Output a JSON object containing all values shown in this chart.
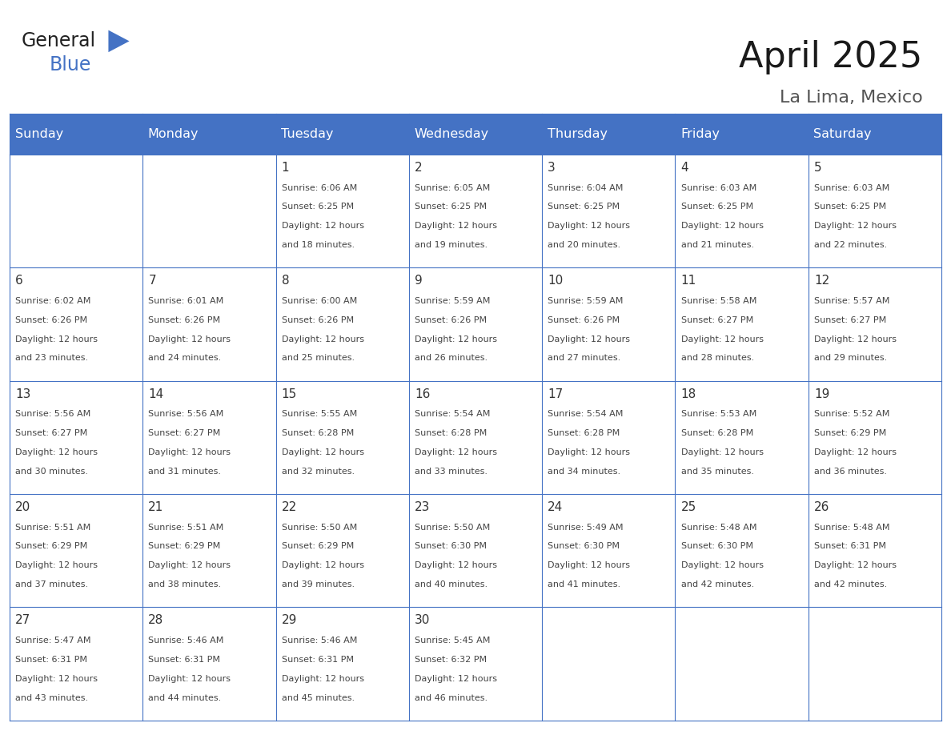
{
  "title": "April 2025",
  "subtitle": "La Lima, Mexico",
  "header_bg_color": "#4472C4",
  "header_text_color": "#FFFFFF",
  "cell_bg_color": "#FFFFFF",
  "grid_line_color": "#4472C4",
  "day_number_color": "#333333",
  "cell_text_color": "#444444",
  "days_of_week": [
    "Sunday",
    "Monday",
    "Tuesday",
    "Wednesday",
    "Thursday",
    "Friday",
    "Saturday"
  ],
  "weeks": [
    [
      {
        "day": "",
        "sunrise": "",
        "sunset": "",
        "daylight": ""
      },
      {
        "day": "",
        "sunrise": "",
        "sunset": "",
        "daylight": ""
      },
      {
        "day": "1",
        "sunrise": "6:06 AM",
        "sunset": "6:25 PM",
        "daylight": "12 hours\nand 18 minutes."
      },
      {
        "day": "2",
        "sunrise": "6:05 AM",
        "sunset": "6:25 PM",
        "daylight": "12 hours\nand 19 minutes."
      },
      {
        "day": "3",
        "sunrise": "6:04 AM",
        "sunset": "6:25 PM",
        "daylight": "12 hours\nand 20 minutes."
      },
      {
        "day": "4",
        "sunrise": "6:03 AM",
        "sunset": "6:25 PM",
        "daylight": "12 hours\nand 21 minutes."
      },
      {
        "day": "5",
        "sunrise": "6:03 AM",
        "sunset": "6:25 PM",
        "daylight": "12 hours\nand 22 minutes."
      }
    ],
    [
      {
        "day": "6",
        "sunrise": "6:02 AM",
        "sunset": "6:26 PM",
        "daylight": "12 hours\nand 23 minutes."
      },
      {
        "day": "7",
        "sunrise": "6:01 AM",
        "sunset": "6:26 PM",
        "daylight": "12 hours\nand 24 minutes."
      },
      {
        "day": "8",
        "sunrise": "6:00 AM",
        "sunset": "6:26 PM",
        "daylight": "12 hours\nand 25 minutes."
      },
      {
        "day": "9",
        "sunrise": "5:59 AM",
        "sunset": "6:26 PM",
        "daylight": "12 hours\nand 26 minutes."
      },
      {
        "day": "10",
        "sunrise": "5:59 AM",
        "sunset": "6:26 PM",
        "daylight": "12 hours\nand 27 minutes."
      },
      {
        "day": "11",
        "sunrise": "5:58 AM",
        "sunset": "6:27 PM",
        "daylight": "12 hours\nand 28 minutes."
      },
      {
        "day": "12",
        "sunrise": "5:57 AM",
        "sunset": "6:27 PM",
        "daylight": "12 hours\nand 29 minutes."
      }
    ],
    [
      {
        "day": "13",
        "sunrise": "5:56 AM",
        "sunset": "6:27 PM",
        "daylight": "12 hours\nand 30 minutes."
      },
      {
        "day": "14",
        "sunrise": "5:56 AM",
        "sunset": "6:27 PM",
        "daylight": "12 hours\nand 31 minutes."
      },
      {
        "day": "15",
        "sunrise": "5:55 AM",
        "sunset": "6:28 PM",
        "daylight": "12 hours\nand 32 minutes."
      },
      {
        "day": "16",
        "sunrise": "5:54 AM",
        "sunset": "6:28 PM",
        "daylight": "12 hours\nand 33 minutes."
      },
      {
        "day": "17",
        "sunrise": "5:54 AM",
        "sunset": "6:28 PM",
        "daylight": "12 hours\nand 34 minutes."
      },
      {
        "day": "18",
        "sunrise": "5:53 AM",
        "sunset": "6:28 PM",
        "daylight": "12 hours\nand 35 minutes."
      },
      {
        "day": "19",
        "sunrise": "5:52 AM",
        "sunset": "6:29 PM",
        "daylight": "12 hours\nand 36 minutes."
      }
    ],
    [
      {
        "day": "20",
        "sunrise": "5:51 AM",
        "sunset": "6:29 PM",
        "daylight": "12 hours\nand 37 minutes."
      },
      {
        "day": "21",
        "sunrise": "5:51 AM",
        "sunset": "6:29 PM",
        "daylight": "12 hours\nand 38 minutes."
      },
      {
        "day": "22",
        "sunrise": "5:50 AM",
        "sunset": "6:29 PM",
        "daylight": "12 hours\nand 39 minutes."
      },
      {
        "day": "23",
        "sunrise": "5:50 AM",
        "sunset": "6:30 PM",
        "daylight": "12 hours\nand 40 minutes."
      },
      {
        "day": "24",
        "sunrise": "5:49 AM",
        "sunset": "6:30 PM",
        "daylight": "12 hours\nand 41 minutes."
      },
      {
        "day": "25",
        "sunrise": "5:48 AM",
        "sunset": "6:30 PM",
        "daylight": "12 hours\nand 42 minutes."
      },
      {
        "day": "26",
        "sunrise": "5:48 AM",
        "sunset": "6:31 PM",
        "daylight": "12 hours\nand 42 minutes."
      }
    ],
    [
      {
        "day": "27",
        "sunrise": "5:47 AM",
        "sunset": "6:31 PM",
        "daylight": "12 hours\nand 43 minutes."
      },
      {
        "day": "28",
        "sunrise": "5:46 AM",
        "sunset": "6:31 PM",
        "daylight": "12 hours\nand 44 minutes."
      },
      {
        "day": "29",
        "sunrise": "5:46 AM",
        "sunset": "6:31 PM",
        "daylight": "12 hours\nand 45 minutes."
      },
      {
        "day": "30",
        "sunrise": "5:45 AM",
        "sunset": "6:32 PM",
        "daylight": "12 hours\nand 46 minutes."
      },
      {
        "day": "",
        "sunrise": "",
        "sunset": "",
        "daylight": ""
      },
      {
        "day": "",
        "sunrise": "",
        "sunset": "",
        "daylight": ""
      },
      {
        "day": "",
        "sunrise": "",
        "sunset": "",
        "daylight": ""
      }
    ]
  ],
  "logo_text_general": "General",
  "logo_text_blue": "Blue",
  "logo_color_general": "#222222",
  "logo_color_blue": "#4472C4",
  "logo_triangle_color": "#4472C4",
  "title_fontsize": 32,
  "subtitle_fontsize": 16,
  "header_fontsize": 11.5,
  "day_num_fontsize": 11,
  "cell_text_fontsize": 8.0
}
